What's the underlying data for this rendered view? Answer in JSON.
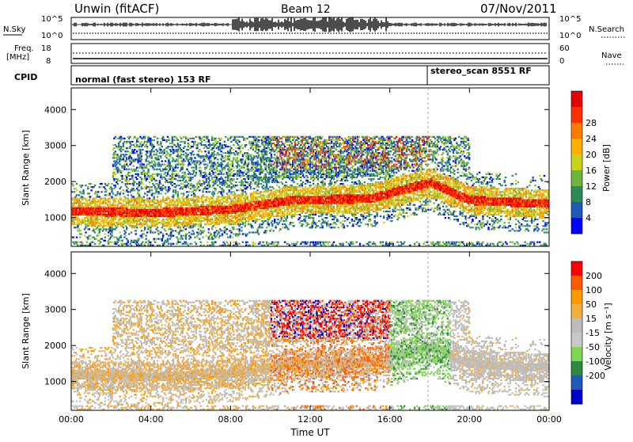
{
  "header": {
    "site": "Unwin (fitACF)",
    "beam": "Beam 12",
    "date": "07/Nov/2011"
  },
  "noise_panel": {
    "label_left": "N.Sky",
    "label_right": "N.Search",
    "ticks": [
      "10^5",
      "10^0"
    ]
  },
  "freq_panel": {
    "label_left_1": "Freq.",
    "label_left_2": "[MHz]",
    "left_ticks": [
      "18",
      "8"
    ],
    "right_ticks": [
      "60",
      "0"
    ],
    "label_right": "Nave"
  },
  "cpid_panel": {
    "label": "CPID",
    "mode_1": "normal (fast stereo) 153 RF",
    "mode_2": "stereo_scan 8551 RF"
  },
  "colors": {
    "power": [
      "#0000ff",
      "#1e5bb8",
      "#2e8b57",
      "#6db33f",
      "#c8d41a",
      "#ffb000",
      "#ff7a00",
      "#ff3000",
      "#e60000"
    ],
    "velocity": [
      "#ff0000",
      "#ff5a00",
      "#ff9a00",
      "#f0b040",
      "#bdbdbd",
      "#c8c8c8",
      "#7fd650",
      "#2e8b3e",
      "#1e5bb8",
      "#0000cc"
    ]
  },
  "chart_data": [
    {
      "type": "heatmap",
      "name": "power",
      "xlabel": "Time UT",
      "ylabel": "Slant Range [km]",
      "x_ticks": [
        "00:00",
        "04:00",
        "08:00",
        "12:00",
        "16:00",
        "20:00",
        "00:00"
      ],
      "y_ticks": [
        1000,
        2000,
        3000,
        4000
      ],
      "ylim": [
        200,
        4600
      ],
      "colorbar": {
        "label": "Power [dB]",
        "ticks": [
          4,
          8,
          12,
          16,
          20,
          24,
          28
        ]
      },
      "main_band_km": [
        {
          "t": 0,
          "range": 1200
        },
        {
          "t": 4,
          "range": 1150
        },
        {
          "t": 8,
          "range": 1250
        },
        {
          "t": 11,
          "range": 1500
        },
        {
          "t": 15,
          "range": 1550
        },
        {
          "t": 18,
          "range": 2000
        },
        {
          "t": 20,
          "range": 1500
        },
        {
          "t": 24,
          "range": 1400
        }
      ]
    },
    {
      "type": "heatmap",
      "name": "velocity",
      "xlabel": "Time UT",
      "ylabel": "Slant Range [km]",
      "x_ticks": [
        "00:00",
        "04:00",
        "08:00",
        "12:00",
        "16:00",
        "20:00",
        "00:00"
      ],
      "y_ticks": [
        1000,
        2000,
        3000,
        4000
      ],
      "ylim": [
        200,
        4600
      ],
      "colorbar": {
        "label": "Velocity [m s⁻¹]",
        "ticks": [
          200,
          100,
          50,
          15,
          -15,
          -50,
          -100,
          -200
        ]
      }
    }
  ]
}
